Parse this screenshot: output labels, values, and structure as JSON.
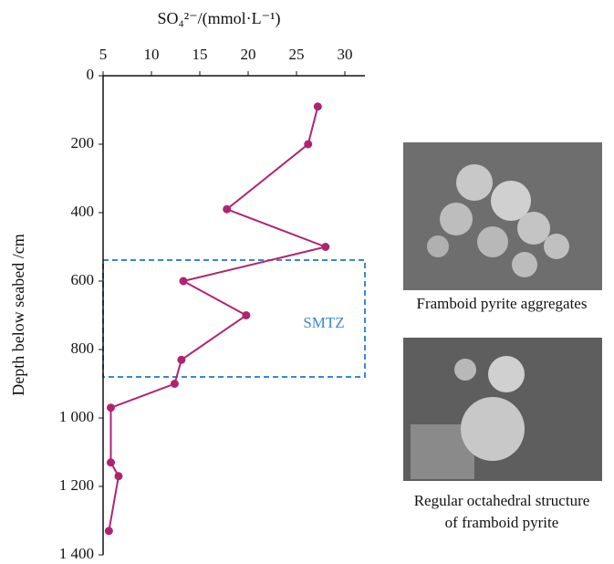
{
  "chart_data": {
    "type": "line",
    "x_label": "SO₄²⁻/(mmol·L⁻¹)",
    "y_label": "Depth below seabed /cm",
    "x": [
      27.2,
      26.2,
      17.8,
      28.0,
      13.3,
      19.8,
      13.1,
      12.4,
      5.8,
      5.8,
      6.6,
      5.6
    ],
    "values": [
      90,
      200,
      390,
      500,
      600,
      700,
      830,
      900,
      970,
      1130,
      1170,
      1330
    ],
    "color": "#b0246f",
    "xlim": [
      5,
      30
    ],
    "xticks": [
      5,
      10,
      15,
      20,
      25,
      30
    ],
    "ylim": [
      0,
      1400
    ],
    "yticks": [
      0,
      200,
      400,
      600,
      800,
      {
        "value": 1000,
        "label": "1 000"
      },
      {
        "value": 1200,
        "label": "1 200"
      },
      {
        "value": 1400,
        "label": "1 400"
      }
    ],
    "y_inverted": true,
    "annotation": "SMTZ",
    "annotation_color": "#3f86d0"
  },
  "figures": [
    {
      "caption": "Framboid pyrite aggregates"
    },
    {
      "caption": "Regular octahedral structure",
      "caption_line2": "of framboid pyrite"
    }
  ]
}
